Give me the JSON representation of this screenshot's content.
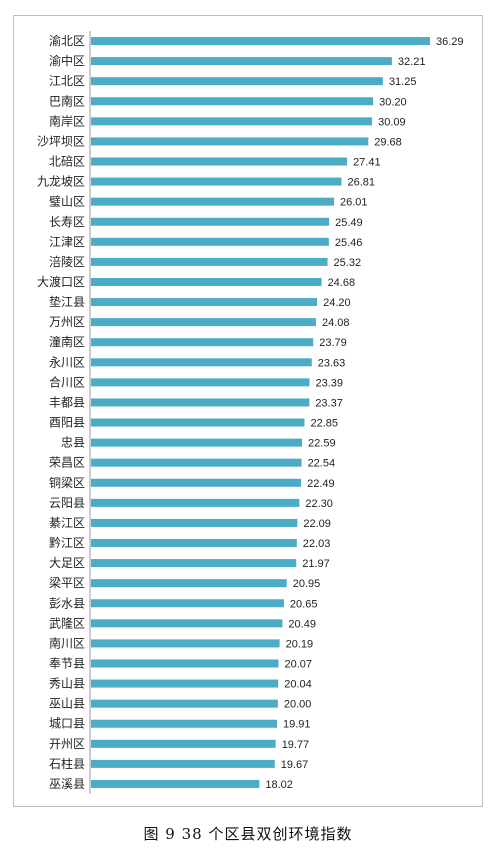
{
  "caption": "图 9 38 个区县双创环境指数",
  "chart_data": {
    "type": "bar",
    "orientation": "horizontal",
    "title": "",
    "xlabel": "",
    "ylabel": "",
    "grid": false,
    "legend": "none",
    "xlim": [
      0,
      38
    ],
    "bar_color": "#4BACC6",
    "categories": [
      "渝北区",
      "渝中区",
      "江北区",
      "巴南区",
      "南岸区",
      "沙坪坝区",
      "北碚区",
      "九龙坡区",
      "璧山区",
      "长寿区",
      "江津区",
      "涪陵区",
      "大渡口区",
      "垫江县",
      "万州区",
      "潼南区",
      "永川区",
      "合川区",
      "丰都县",
      "酉阳县",
      "忠县",
      "荣昌区",
      "铜梁区",
      "云阳县",
      "綦江区",
      "黔江区",
      "大足区",
      "梁平区",
      "彭水县",
      "武隆区",
      "南川区",
      "奉节县",
      "秀山县",
      "巫山县",
      "城口县",
      "开州区",
      "石柱县",
      "巫溪县"
    ],
    "values": [
      36.29,
      32.21,
      31.25,
      30.2,
      30.09,
      29.68,
      27.41,
      26.81,
      26.01,
      25.49,
      25.46,
      25.32,
      24.68,
      24.2,
      24.08,
      23.79,
      23.63,
      23.39,
      23.37,
      22.85,
      22.59,
      22.54,
      22.49,
      22.3,
      22.09,
      22.03,
      21.97,
      20.95,
      20.65,
      20.49,
      20.19,
      20.07,
      20.04,
      20.0,
      19.91,
      19.77,
      19.67,
      18.02
    ],
    "labels": [
      "36.29",
      "32.21",
      "31.25",
      "30.20",
      "30.09",
      "29.68",
      "27.41",
      "26.81",
      "26.01",
      "25.49",
      "25.46",
      "25.32",
      "24.68",
      "24.20",
      "24.08",
      "23.79",
      "23.63",
      "23.39",
      "23.37",
      "22.85",
      "22.59",
      "22.54",
      "22.49",
      "22.30",
      "22.09",
      "22.03",
      "21.97",
      "20.95",
      "20.65",
      "20.49",
      "20.19",
      "20.07",
      "20.04",
      "20.00",
      "19.91",
      "19.77",
      "19.67",
      "18.02"
    ]
  }
}
